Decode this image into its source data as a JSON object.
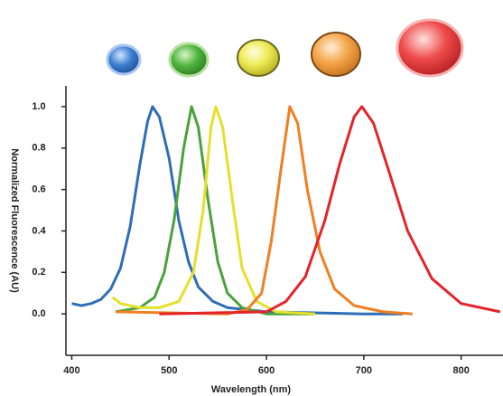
{
  "chart_data": {
    "type": "line",
    "xlabel": "Wavelength (nm)",
    "ylabel": "Normalized Fluorescence (AU)",
    "xlim": [
      394,
      843
    ],
    "ylim": [
      -0.2,
      1.1
    ],
    "xticks": [
      400,
      500,
      600,
      700,
      800
    ],
    "yticks": [
      {
        "value": 0,
        "label": "0.0"
      },
      0.2,
      0.4,
      0.6,
      0.8,
      {
        "value": 1,
        "label": "1.0"
      }
    ],
    "series": [
      {
        "color": "#2f6db5",
        "x": [
          400,
          410,
          420,
          430,
          440,
          450,
          460,
          470,
          478,
          483,
          490,
          500,
          510,
          520,
          530,
          545,
          560,
          600,
          700,
          740
        ],
        "values": [
          0.05,
          0.04,
          0.05,
          0.07,
          0.12,
          0.22,
          0.42,
          0.72,
          0.93,
          1.0,
          0.95,
          0.75,
          0.45,
          0.25,
          0.13,
          0.06,
          0.03,
          0.01,
          0.0,
          0.0
        ]
      },
      {
        "color": "#4aa23a",
        "x": [
          445,
          470,
          485,
          495,
          505,
          515,
          523,
          530,
          540,
          550,
          560,
          575,
          600,
          650
        ],
        "values": [
          0.01,
          0.03,
          0.08,
          0.2,
          0.45,
          0.8,
          1.0,
          0.9,
          0.55,
          0.25,
          0.1,
          0.03,
          0.0,
          0.0
        ]
      },
      {
        "color": "#e6e02a",
        "x": [
          442,
          450,
          470,
          490,
          510,
          525,
          535,
          543,
          548,
          555,
          565,
          575,
          590,
          610,
          650
        ],
        "values": [
          0.08,
          0.05,
          0.03,
          0.03,
          0.06,
          0.2,
          0.5,
          0.9,
          1.0,
          0.9,
          0.55,
          0.22,
          0.06,
          0.01,
          0.0
        ]
      },
      {
        "color": "#f07f22",
        "x": [
          445,
          560,
          580,
          595,
          605,
          615,
          624,
          632,
          642,
          655,
          670,
          690,
          720,
          750
        ],
        "values": [
          0.01,
          0.0,
          0.02,
          0.1,
          0.35,
          0.7,
          1.0,
          0.92,
          0.6,
          0.3,
          0.12,
          0.04,
          0.01,
          0.0
        ]
      },
      {
        "color": "#e3242b",
        "x": [
          490,
          600,
          620,
          640,
          660,
          675,
          690,
          698,
          710,
          725,
          745,
          770,
          800,
          840
        ],
        "values": [
          0.0,
          0.01,
          0.06,
          0.18,
          0.45,
          0.72,
          0.95,
          1.0,
          0.92,
          0.7,
          0.4,
          0.17,
          0.05,
          0.01
        ]
      }
    ]
  }
}
